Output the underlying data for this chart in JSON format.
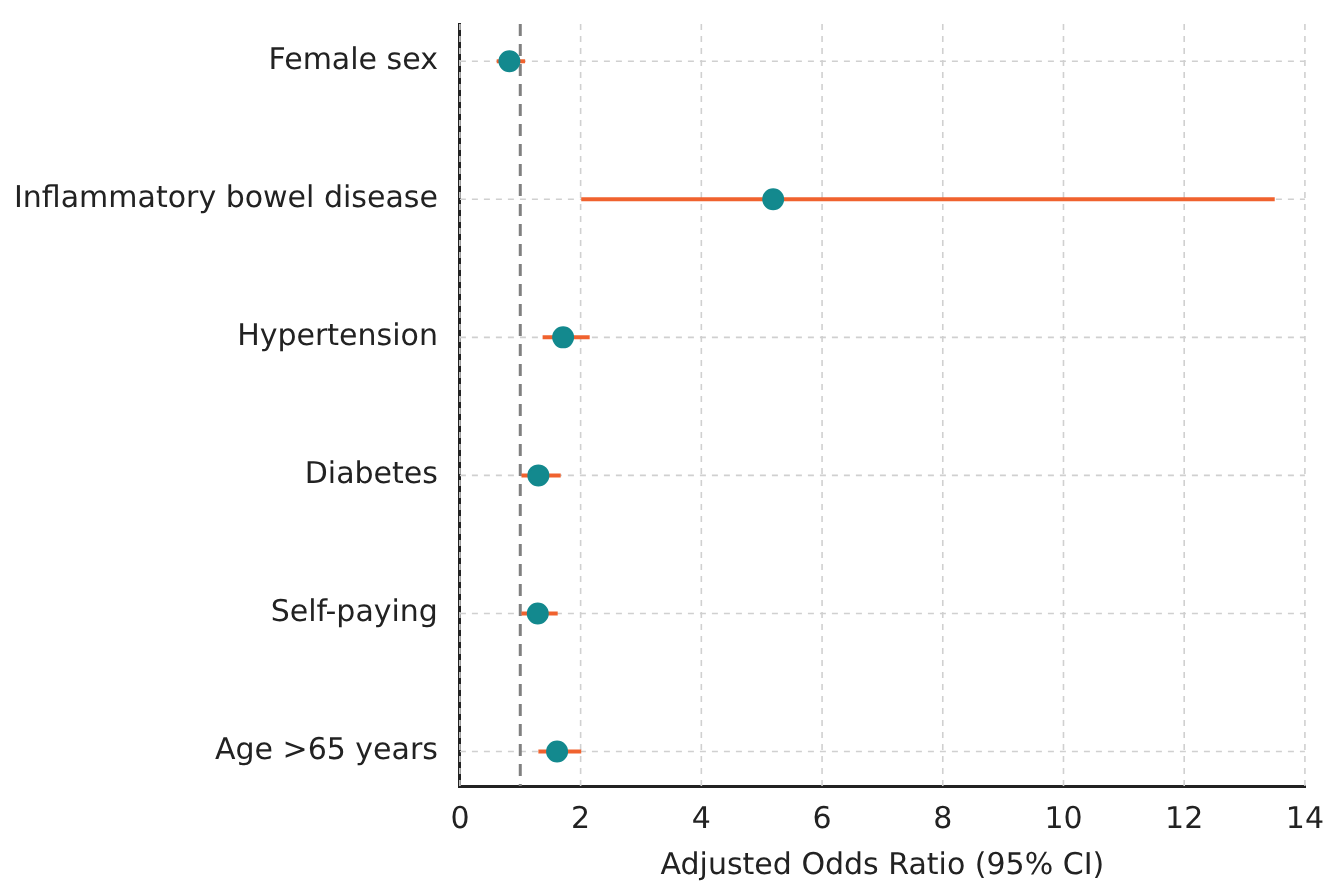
{
  "chart_data": {
    "type": "scatter",
    "orientation": "horizontal",
    "xlabel": "Adjusted Odds Ratio (95% CI)",
    "categories": [
      "Female sex",
      "Inflammatory bowel disease",
      "Hypertension",
      "Diabetes",
      "Self-paying",
      "Age >65 years"
    ],
    "series": [
      {
        "color": "#13898e",
        "values": [
          0.82,
          5.19,
          1.71,
          1.3,
          1.29,
          1.61
        ],
        "errors": [
          [
            0.61,
            1.08
          ],
          [
            2.01,
            13.5
          ],
          [
            1.37,
            2.15
          ],
          [
            1.02,
            1.67
          ],
          [
            1.02,
            1.62
          ],
          [
            1.3,
            2.01
          ]
        ]
      }
    ],
    "xlim": [
      0,
      14
    ],
    "xticks": [
      0,
      2,
      4,
      6,
      8,
      10,
      12,
      14
    ],
    "ref_lines": [
      {
        "axis": "x",
        "value": 1,
        "color": "#808080",
        "line_style": "dashed"
      }
    ],
    "grid": true,
    "marker": "circle",
    "legend": false
  }
}
